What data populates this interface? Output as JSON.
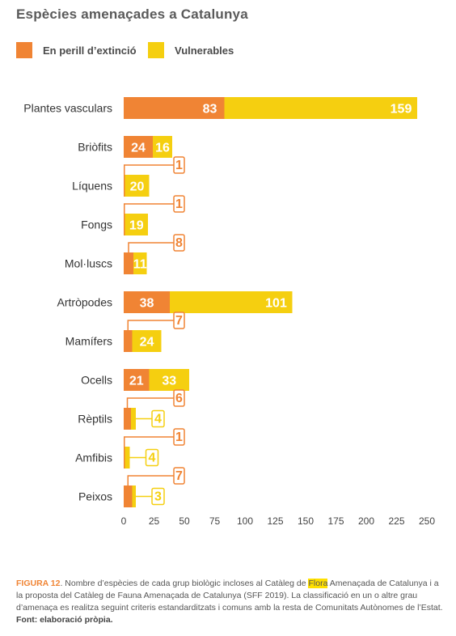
{
  "chart_data": {
    "type": "bar",
    "orientation": "horizontal",
    "stacked": true,
    "title": "Espècies amenaçades a Catalunya",
    "categories": [
      "Plantes vasculars",
      "Briòfits",
      "Líquens",
      "Fongs",
      "Mol·luscs",
      "Artròpodes",
      "Mamífers",
      "Ocells",
      "Rèptils",
      "Amfibis",
      "Peixos"
    ],
    "series": [
      {
        "name": "En perill d’extinció",
        "color": "#f08434",
        "values": [
          83,
          24,
          1,
          1,
          8,
          38,
          7,
          21,
          6,
          1,
          7
        ]
      },
      {
        "name": "Vulnerables",
        "color": "#f5cf10",
        "values": [
          159,
          16,
          20,
          19,
          11,
          101,
          24,
          33,
          4,
          4,
          3
        ]
      }
    ],
    "xlim": [
      0,
      250
    ],
    "xticks": [
      0,
      25,
      50,
      75,
      100,
      125,
      150,
      175,
      200,
      225,
      250
    ],
    "xlabel": "",
    "ylabel": "",
    "legend_position": "top-left",
    "grid": false
  },
  "caption": {
    "figure_label": "FIGURA 12",
    "text_before": ". Nombre d’espècies de cada grup biològic incloses al Catàleg de ",
    "highlighted": "Flora",
    "text_after": " Amenaçada de Catalunya i a la proposta del Catàleg de Fauna Amenaçada de Catalunya (SFF 2019). La classificació en un o altre grau d’amenaça es realitza seguint criteris estandarditzats i comuns amb la resta de Comunitats Autònomes de l’Estat. ",
    "source": "Font: elaboració pròpia."
  }
}
